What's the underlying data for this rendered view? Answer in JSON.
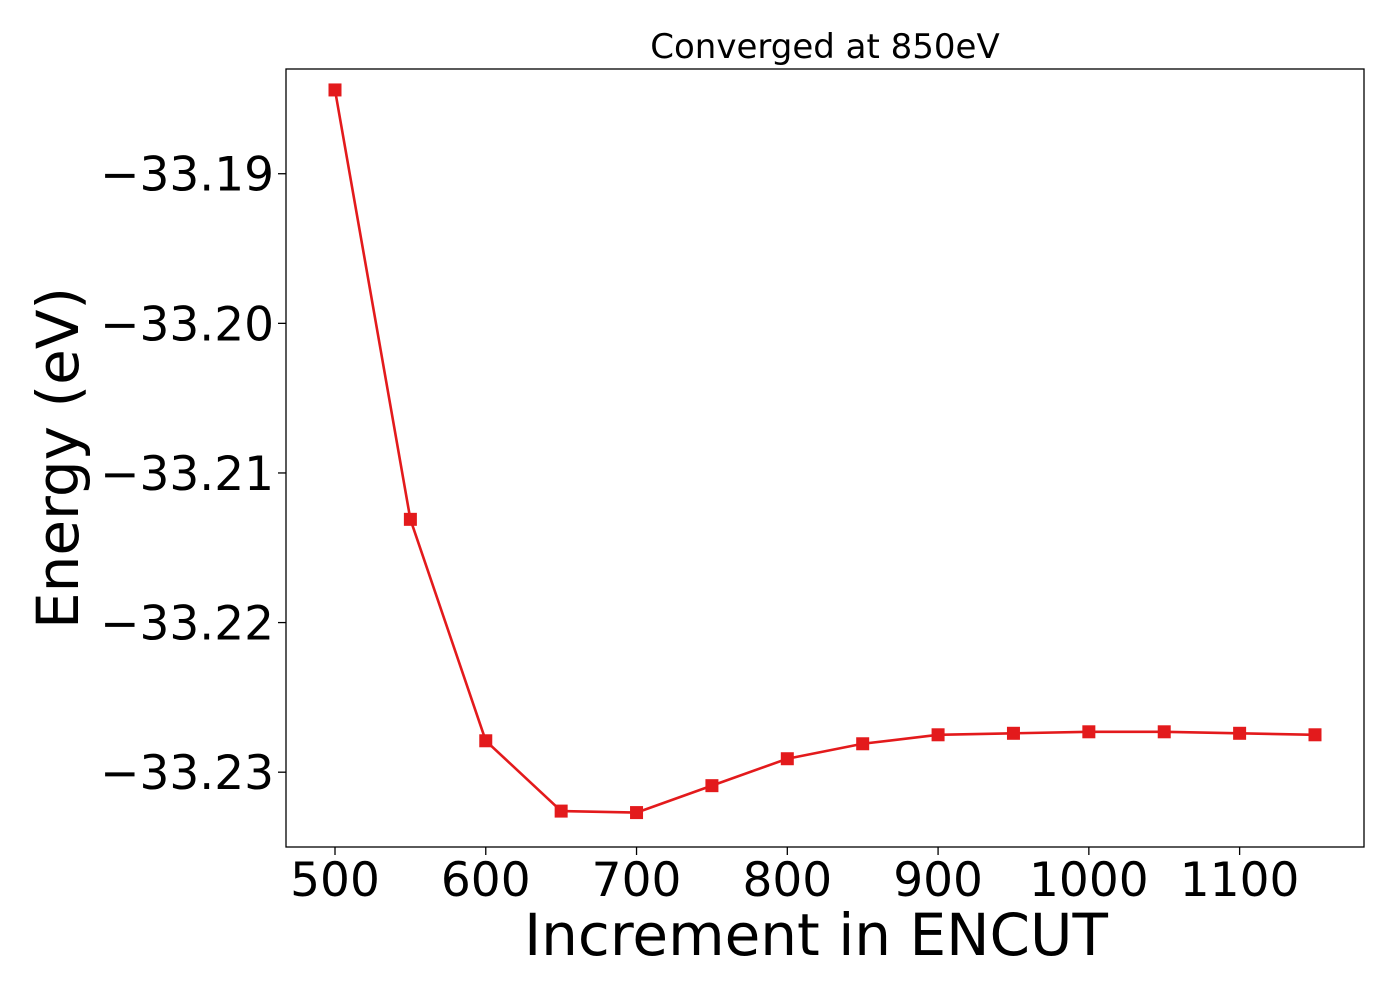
{
  "colors": {
    "series": "#e31a1c",
    "axes": "#000000",
    "background": "#ffffff"
  },
  "chart_data": {
    "type": "line",
    "title": "Converged at 850eV",
    "xlabel": "Increment in ENCUT",
    "ylabel": "Energy (eV)",
    "xlim": [
      467.5,
      1182.5
    ],
    "ylim": [
      -33.235,
      -33.183
    ],
    "xticks": [
      500,
      600,
      700,
      800,
      900,
      1000,
      1100
    ],
    "xtick_labels": [
      "500",
      "600",
      "700",
      "800",
      "900",
      "1000",
      "1100"
    ],
    "yticks": [
      -33.19,
      -33.2,
      -33.21,
      -33.22,
      -33.23
    ],
    "ytick_labels": [
      "−33.19",
      "−33.20",
      "−33.21",
      "−33.22",
      "−33.23"
    ],
    "grid": false,
    "marker": "square",
    "series": [
      {
        "x": [
          500,
          550,
          600,
          650,
          700,
          750,
          800,
          850,
          900,
          950,
          1000,
          1050,
          1100,
          1150
        ],
        "y": [
          -33.1844,
          -33.2131,
          -33.2279,
          -33.2326,
          -33.2327,
          -33.2309,
          -33.2291,
          -33.2281,
          -33.2275,
          -33.2274,
          -33.2273,
          -33.2273,
          -33.2274,
          -33.2275
        ]
      }
    ]
  }
}
